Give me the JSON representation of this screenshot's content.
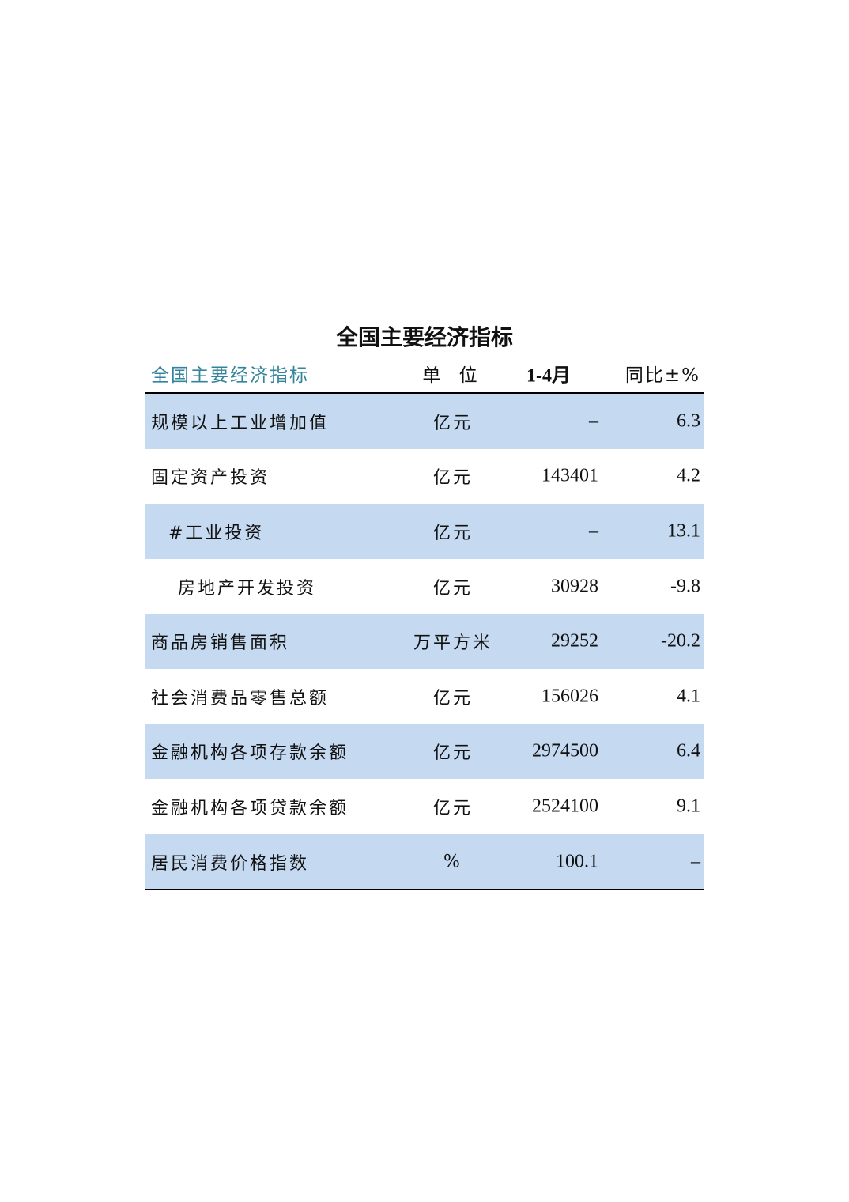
{
  "title": "全国主要经济指标",
  "header": {
    "indicator": "全国主要经济指标",
    "unit": "单 位",
    "period": "1-4月",
    "yoy": "同比±%"
  },
  "colors": {
    "band": "#c5d9f1",
    "header_text": "#31849b"
  },
  "rows": [
    {
      "label": "规模以上工业增加值",
      "unit": "亿元",
      "value": "–",
      "yoy": "6.3",
      "indent": 0
    },
    {
      "label": "固定资产投资",
      "unit": "亿元",
      "value": "143401",
      "yoy": "4.2",
      "indent": 0
    },
    {
      "label": "#工业投资",
      "unit": "亿元",
      "value": "–",
      "yoy": "13.1",
      "indent": 1
    },
    {
      "label": "房地产开发投资",
      "unit": "亿元",
      "value": "30928",
      "yoy": "-9.8",
      "indent": 2
    },
    {
      "label": "商品房销售面积",
      "unit": "万平方米",
      "value": "29252",
      "yoy": "-20.2",
      "indent": 0
    },
    {
      "label": "社会消费品零售总额",
      "unit": "亿元",
      "value": "156026",
      "yoy": "4.1",
      "indent": 0
    },
    {
      "label": "金融机构各项存款余额",
      "unit": "亿元",
      "value": "2974500",
      "yoy": "6.4",
      "indent": 0
    },
    {
      "label": "金融机构各项贷款余额",
      "unit": "亿元",
      "value": "2524100",
      "yoy": "9.1",
      "indent": 0
    },
    {
      "label": "居民消费价格指数",
      "unit": "%",
      "value": "100.1",
      "yoy": "–",
      "indent": 0
    }
  ]
}
